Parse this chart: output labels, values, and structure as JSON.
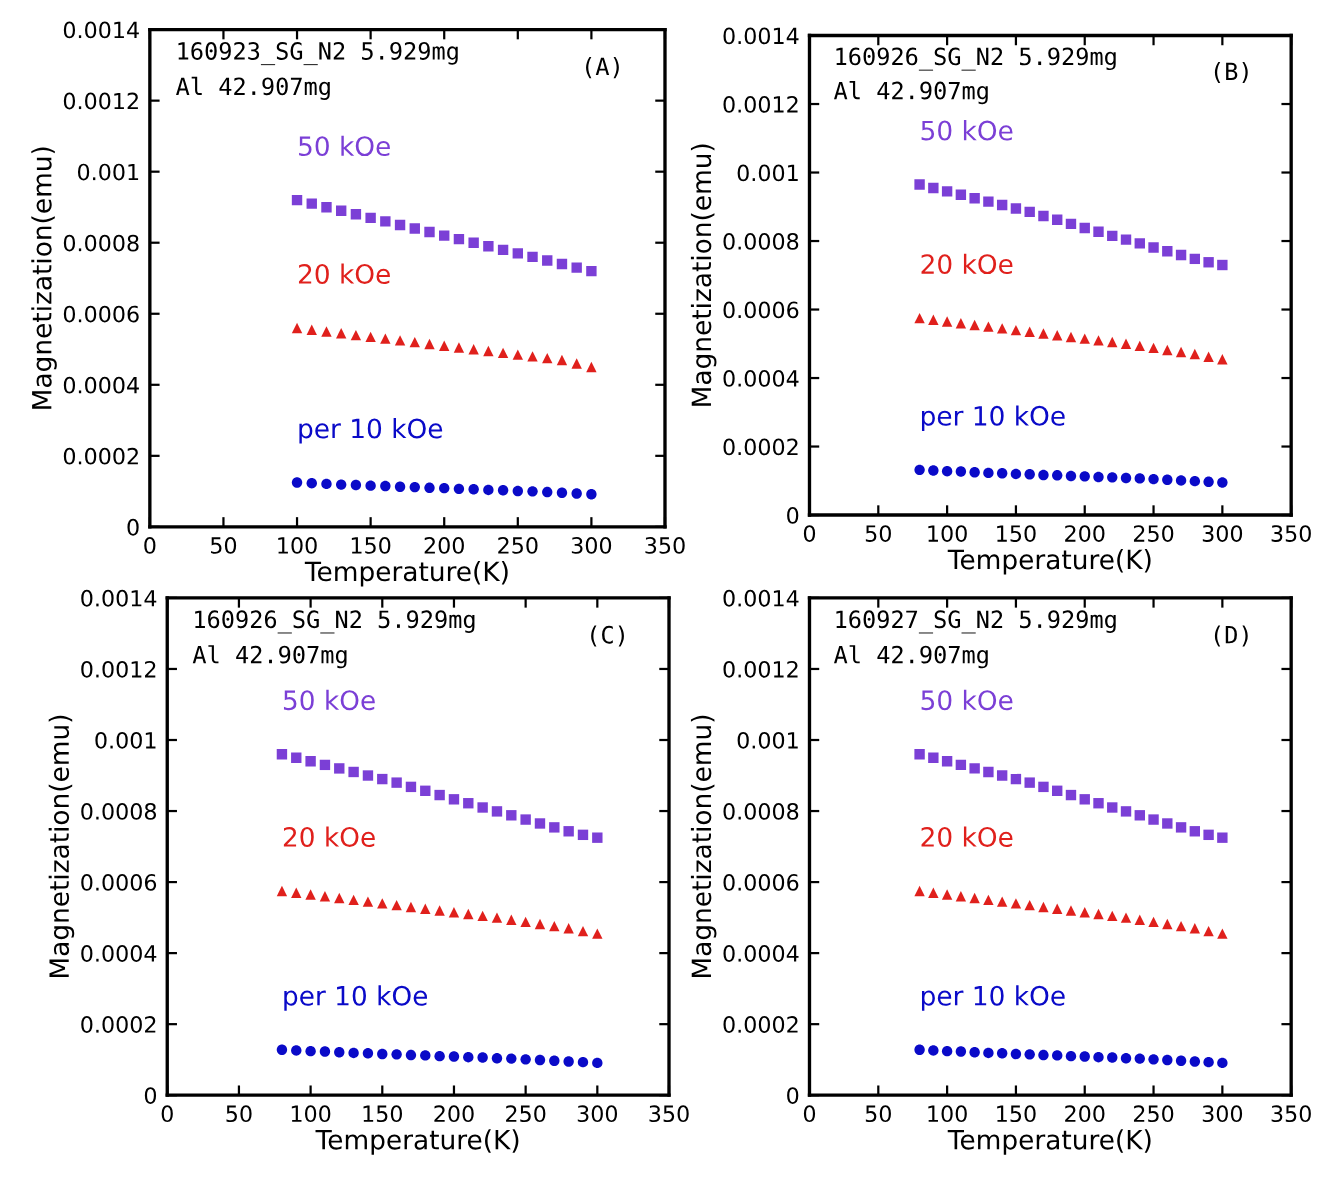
{
  "chart_data": [
    {
      "type": "scatter",
      "xlabel": "Temperature(K)",
      "ylabel": "Magnetization(emu)",
      "annotations": [
        "160923_SG_N2 5.929mg",
        "Al 42.907mg",
        "(A)"
      ],
      "xlim": [
        0,
        350
      ],
      "xticks": [
        0,
        50,
        100,
        150,
        200,
        250,
        300,
        350
      ],
      "ylim": [
        0,
        0.0014
      ],
      "yticks": [
        0,
        0.0002,
        0.0004,
        0.0006,
        0.0008,
        0.001,
        0.0012,
        0.0014
      ],
      "grid": false,
      "legend": false,
      "series": [
        {
          "name": "50 kOe",
          "color": "#7b3fd6",
          "marker": "square",
          "x": [
            100,
            110,
            120,
            130,
            140,
            150,
            160,
            170,
            180,
            190,
            200,
            210,
            220,
            230,
            240,
            250,
            260,
            270,
            280,
            290,
            300
          ],
          "values": [
            0.00092,
            0.00091,
            0.0009,
            0.00089,
            0.00088,
            0.00087,
            0.00086,
            0.00085,
            0.00084,
            0.00083,
            0.00082,
            0.00081,
            0.0008,
            0.00079,
            0.00078,
            0.00077,
            0.00076,
            0.00075,
            0.00074,
            0.00073,
            0.00072
          ]
        },
        {
          "name": "20 kOe",
          "color": "#e0201c",
          "marker": "triangle",
          "x": [
            100,
            110,
            120,
            130,
            140,
            150,
            160,
            170,
            180,
            190,
            200,
            210,
            220,
            230,
            240,
            250,
            260,
            270,
            280,
            290,
            300
          ],
          "values": [
            0.00056,
            0.000555,
            0.00055,
            0.000545,
            0.00054,
            0.000535,
            0.00053,
            0.000525,
            0.00052,
            0.000515,
            0.00051,
            0.000505,
            0.0005,
            0.000495,
            0.00049,
            0.000485,
            0.00048,
            0.000475,
            0.00047,
            0.00046,
            0.00045
          ]
        },
        {
          "name": "per 10 kOe",
          "color": "#0a0ac8",
          "marker": "circle",
          "x": [
            100,
            110,
            120,
            130,
            140,
            150,
            160,
            170,
            180,
            190,
            200,
            210,
            220,
            230,
            240,
            250,
            260,
            270,
            280,
            290,
            300
          ],
          "values": [
            0.000125,
            0.000123,
            0.000121,
            0.000119,
            0.000118,
            0.000116,
            0.000115,
            0.000113,
            0.000112,
            0.00011,
            0.000109,
            0.000107,
            0.000106,
            0.000104,
            0.000103,
            0.000101,
            0.0001,
            9.8e-05,
            9.6e-05,
            9.4e-05,
            9.2e-05
          ]
        }
      ]
    },
    {
      "type": "scatter",
      "xlabel": "Temperature(K)",
      "ylabel": "Magnetization(emu)",
      "annotations": [
        "160926_SG_N2 5.929mg",
        "Al 42.907mg",
        "(B)"
      ],
      "xlim": [
        0,
        350
      ],
      "xticks": [
        0,
        50,
        100,
        150,
        200,
        250,
        300,
        350
      ],
      "ylim": [
        0,
        0.0014
      ],
      "yticks": [
        0,
        0.0002,
        0.0004,
        0.0006,
        0.0008,
        0.001,
        0.0012,
        0.0014
      ],
      "grid": false,
      "legend": false,
      "series": [
        {
          "name": "50 kOe",
          "color": "#7b3fd6",
          "marker": "square",
          "x": [
            80,
            90,
            100,
            110,
            120,
            130,
            140,
            150,
            160,
            170,
            180,
            190,
            200,
            210,
            220,
            230,
            240,
            250,
            260,
            270,
            280,
            290,
            300
          ],
          "values": [
            0.000965,
            0.000955,
            0.000945,
            0.000935,
            0.000925,
            0.000915,
            0.000905,
            0.000895,
            0.000885,
            0.000873,
            0.000862,
            0.00085,
            0.000838,
            0.000827,
            0.000815,
            0.000804,
            0.000793,
            0.000781,
            0.00077,
            0.000759,
            0.000748,
            0.000738,
            0.00073
          ]
        },
        {
          "name": "20 kOe",
          "color": "#e0201c",
          "marker": "triangle",
          "x": [
            80,
            90,
            100,
            110,
            120,
            130,
            140,
            150,
            160,
            170,
            180,
            190,
            200,
            210,
            220,
            230,
            240,
            250,
            260,
            270,
            280,
            290,
            300
          ],
          "values": [
            0.000575,
            0.00057,
            0.000565,
            0.00056,
            0.000555,
            0.00055,
            0.000545,
            0.00054,
            0.000535,
            0.00053,
            0.000525,
            0.00052,
            0.000515,
            0.00051,
            0.000505,
            0.0005,
            0.000494,
            0.000488,
            0.000482,
            0.000476,
            0.00047,
            0.000462,
            0.000455
          ]
        },
        {
          "name": "per 10 kOe",
          "color": "#0a0ac8",
          "marker": "circle",
          "x": [
            80,
            90,
            100,
            110,
            120,
            130,
            140,
            150,
            160,
            170,
            180,
            190,
            200,
            210,
            220,
            230,
            240,
            250,
            260,
            270,
            280,
            290,
            300
          ],
          "values": [
            0.000132,
            0.00013,
            0.000128,
            0.000127,
            0.000125,
            0.000123,
            0.000122,
            0.00012,
            0.000119,
            0.000117,
            0.000116,
            0.000114,
            0.000113,
            0.000111,
            0.00011,
            0.000108,
            0.000107,
            0.000105,
            0.000103,
            0.000101,
            9.9e-05,
            9.7e-05,
            9.5e-05
          ]
        }
      ]
    },
    {
      "type": "scatter",
      "xlabel": "Temperature(K)",
      "ylabel": "Magnetization(emu)",
      "annotations": [
        "160926_SG_N2 5.929mg",
        "Al 42.907mg",
        "(C)"
      ],
      "xlim": [
        0,
        350
      ],
      "xticks": [
        0,
        50,
        100,
        150,
        200,
        250,
        300,
        350
      ],
      "ylim": [
        0,
        0.0014
      ],
      "yticks": [
        0,
        0.0002,
        0.0004,
        0.0006,
        0.0008,
        0.001,
        0.0012,
        0.0014
      ],
      "grid": false,
      "legend": false,
      "series": [
        {
          "name": "50 kOe",
          "color": "#7b3fd6",
          "marker": "square",
          "x": [
            80,
            90,
            100,
            110,
            120,
            130,
            140,
            150,
            160,
            170,
            180,
            190,
            200,
            210,
            220,
            230,
            240,
            250,
            260,
            270,
            280,
            290,
            300
          ],
          "values": [
            0.00096,
            0.00095,
            0.00094,
            0.00093,
            0.00092,
            0.00091,
            0.0009,
            0.00089,
            0.00088,
            0.000868,
            0.000857,
            0.000845,
            0.000833,
            0.000822,
            0.00081,
            0.000799,
            0.000788,
            0.000776,
            0.000765,
            0.000754,
            0.000743,
            0.000733,
            0.000725
          ]
        },
        {
          "name": "20 kOe",
          "color": "#e0201c",
          "marker": "triangle",
          "x": [
            80,
            90,
            100,
            110,
            120,
            130,
            140,
            150,
            160,
            170,
            180,
            190,
            200,
            210,
            220,
            230,
            240,
            250,
            260,
            270,
            280,
            290,
            300
          ],
          "values": [
            0.000575,
            0.00057,
            0.000565,
            0.00056,
            0.000555,
            0.00055,
            0.000545,
            0.00054,
            0.000535,
            0.00053,
            0.000525,
            0.00052,
            0.000515,
            0.00051,
            0.000505,
            0.0005,
            0.000494,
            0.000488,
            0.000482,
            0.000476,
            0.00047,
            0.000462,
            0.000455
          ]
        },
        {
          "name": "per 10 kOe",
          "color": "#0a0ac8",
          "marker": "circle",
          "x": [
            80,
            90,
            100,
            110,
            120,
            130,
            140,
            150,
            160,
            170,
            180,
            190,
            200,
            210,
            220,
            230,
            240,
            250,
            260,
            270,
            280,
            290,
            300
          ],
          "values": [
            0.000128,
            0.000126,
            0.000124,
            0.000123,
            0.000121,
            0.000119,
            0.000118,
            0.000116,
            0.000115,
            0.000113,
            0.000112,
            0.00011,
            0.000109,
            0.000107,
            0.000106,
            0.000104,
            0.000103,
            0.000101,
            9.9e-05,
            9.7e-05,
            9.5e-05,
            9.3e-05,
            9.1e-05
          ]
        }
      ]
    },
    {
      "type": "scatter",
      "xlabel": "Temperature(K)",
      "ylabel": "Magnetization(emu)",
      "annotations": [
        "160927_SG_N2 5.929mg",
        "Al 42.907mg",
        "(D)"
      ],
      "xlim": [
        0,
        350
      ],
      "xticks": [
        0,
        50,
        100,
        150,
        200,
        250,
        300,
        350
      ],
      "ylim": [
        0,
        0.0014
      ],
      "yticks": [
        0,
        0.0002,
        0.0004,
        0.0006,
        0.0008,
        0.001,
        0.0012,
        0.0014
      ],
      "grid": false,
      "legend": false,
      "series": [
        {
          "name": "50 kOe",
          "color": "#7b3fd6",
          "marker": "square",
          "x": [
            80,
            90,
            100,
            110,
            120,
            130,
            140,
            150,
            160,
            170,
            180,
            190,
            200,
            210,
            220,
            230,
            240,
            250,
            260,
            270,
            280,
            290,
            300
          ],
          "values": [
            0.00096,
            0.00095,
            0.00094,
            0.00093,
            0.00092,
            0.00091,
            0.0009,
            0.00089,
            0.00088,
            0.000868,
            0.000857,
            0.000845,
            0.000833,
            0.000822,
            0.00081,
            0.000799,
            0.000788,
            0.000776,
            0.000765,
            0.000754,
            0.000743,
            0.000733,
            0.000725
          ]
        },
        {
          "name": "20 kOe",
          "color": "#e0201c",
          "marker": "triangle",
          "x": [
            80,
            90,
            100,
            110,
            120,
            130,
            140,
            150,
            160,
            170,
            180,
            190,
            200,
            210,
            220,
            230,
            240,
            250,
            260,
            270,
            280,
            290,
            300
          ],
          "values": [
            0.000575,
            0.00057,
            0.000565,
            0.00056,
            0.000555,
            0.00055,
            0.000545,
            0.00054,
            0.000535,
            0.00053,
            0.000525,
            0.00052,
            0.000515,
            0.00051,
            0.000505,
            0.0005,
            0.000494,
            0.000488,
            0.000482,
            0.000476,
            0.00047,
            0.000462,
            0.000455
          ]
        },
        {
          "name": "per 10 kOe",
          "color": "#0a0ac8",
          "marker": "circle",
          "x": [
            80,
            90,
            100,
            110,
            120,
            130,
            140,
            150,
            160,
            170,
            180,
            190,
            200,
            210,
            220,
            230,
            240,
            250,
            260,
            270,
            280,
            290,
            300
          ],
          "values": [
            0.000128,
            0.000126,
            0.000124,
            0.000123,
            0.000121,
            0.000119,
            0.000118,
            0.000116,
            0.000115,
            0.000113,
            0.000112,
            0.00011,
            0.000109,
            0.000107,
            0.000106,
            0.000104,
            0.000103,
            0.000101,
            9.9e-05,
            9.7e-05,
            9.5e-05,
            9.3e-05,
            9.1e-05
          ]
        }
      ]
    }
  ]
}
